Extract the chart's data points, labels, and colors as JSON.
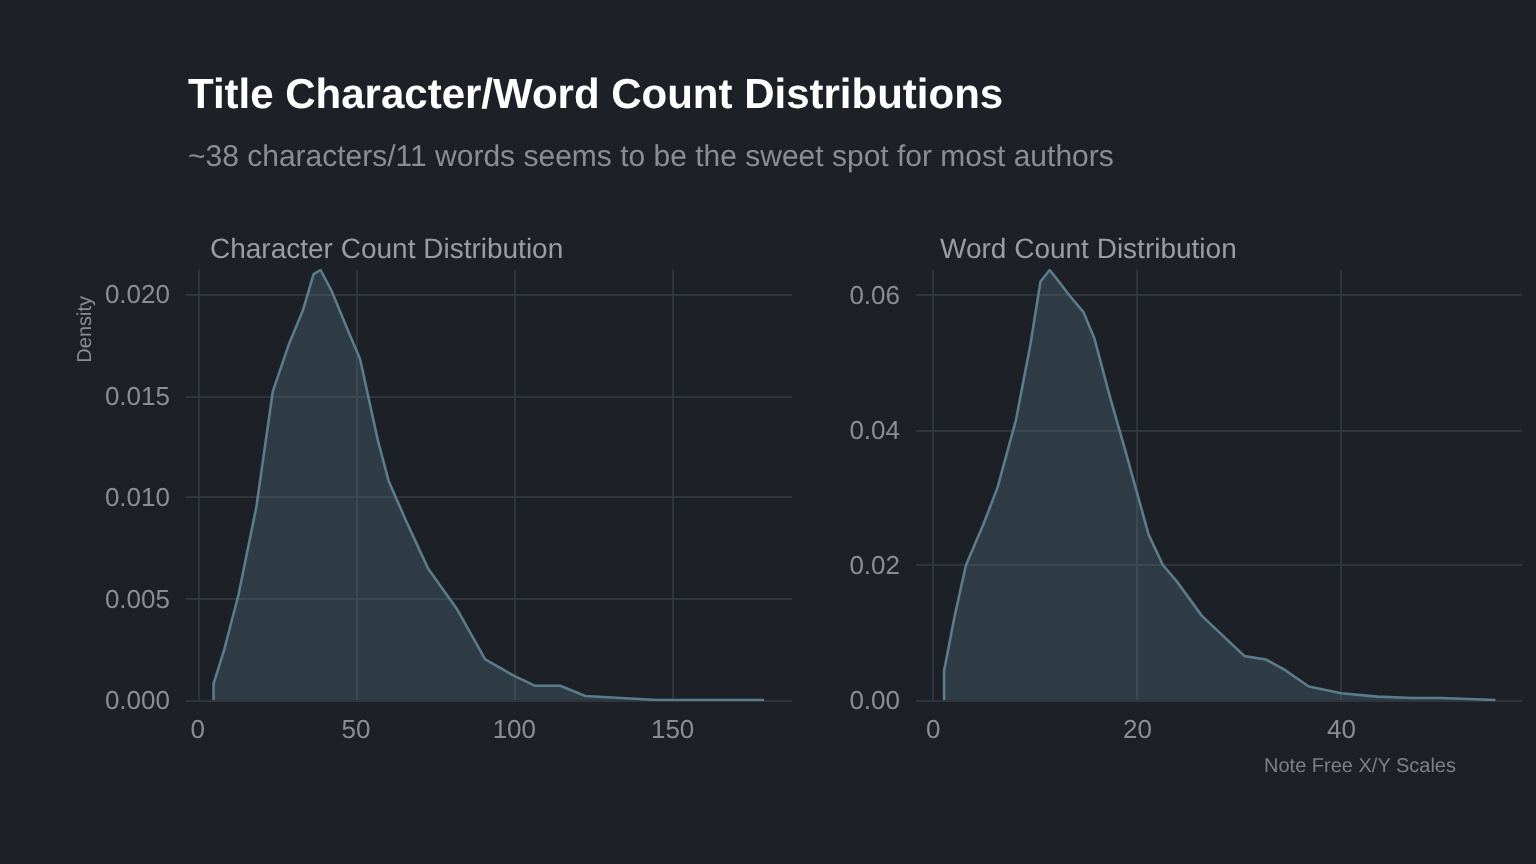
{
  "chart_data": [
    {
      "type": "other",
      "title": "Title Character/Word Count Distributions",
      "subtitle": "~38 characters/11 words seems to be the sweet spot for most authors",
      "annotations": [
        "Note Free X/Y Scales"
      ]
    },
    {
      "type": "area",
      "title": "Character Count Distribution",
      "ylabel": "Density",
      "grid": true,
      "xlim": [
        -3.7,
        187.7
      ],
      "xticks": [
        0,
        50,
        100,
        150
      ],
      "ylim": [
        0,
        0.0212
      ],
      "yticks": [
        {
          "value": 0,
          "label": "0.000"
        },
        {
          "value": 0.005,
          "label": "0.005"
        },
        {
          "value": 0.01,
          "label": "0.010"
        },
        {
          "value": 0.015,
          "label": "0.015"
        },
        {
          "value": 0.02,
          "label": "0.020"
        }
      ],
      "series": [
        {
          "color": "#5b7c8c",
          "x": [
            5,
            5,
            8.4,
            12.9,
            18.5,
            23.7,
            28.7,
            33.2,
            36.6,
            38.8,
            42.2,
            46.7,
            51.3,
            56.9,
            60.3,
            65.9,
            72.7,
            81.8,
            90.8,
            99.8,
            106.6,
            114.5,
            122.4,
            133.7,
            145,
            178.9
          ],
          "values": [
            0,
            0.0008,
            0.0025,
            0.0052,
            0.0095,
            0.0152,
            0.0175,
            0.0192,
            0.021,
            0.0212,
            0.0202,
            0.0185,
            0.0168,
            0.0128,
            0.0108,
            0.0088,
            0.0065,
            0.0045,
            0.002,
            0.0012,
            0.0007,
            0.0007,
            0.0002,
            0.0001,
            0,
            0
          ]
        }
      ]
    },
    {
      "type": "area",
      "title": "Word Count Distribution",
      "grid": true,
      "xlim": [
        -1.7,
        57.7
      ],
      "xticks": [
        0,
        20,
        40
      ],
      "ylim": [
        0,
        0.0637
      ],
      "yticks": [
        {
          "value": 0,
          "label": "0.00"
        },
        {
          "value": 0.02,
          "label": "0.02"
        },
        {
          "value": 0.04,
          "label": "0.04"
        },
        {
          "value": 0.06,
          "label": "0.06"
        }
      ],
      "series": [
        {
          "color": "#5b7c8c",
          "x": [
            1.05,
            1.05,
            2.1,
            3.2,
            4.9,
            6.3,
            8.1,
            9.5,
            10.5,
            11.4,
            12.3,
            13.3,
            14.7,
            15.8,
            17.2,
            18.9,
            21.1,
            22.5,
            23.9,
            26.3,
            28.4,
            30.5,
            32.6,
            34.4,
            36.8,
            40,
            43.5,
            47,
            49.8,
            55.1
          ],
          "values": [
            0,
            0.0043,
            0.0125,
            0.02,
            0.026,
            0.0315,
            0.0415,
            0.0525,
            0.062,
            0.0637,
            0.062,
            0.06,
            0.0575,
            0.0535,
            0.0455,
            0.0365,
            0.0245,
            0.02,
            0.0175,
            0.0125,
            0.0095,
            0.0065,
            0.006,
            0.0045,
            0.002,
            0.001,
            0.0005,
            0.0003,
            0.0003,
            0
          ]
        }
      ]
    }
  ]
}
